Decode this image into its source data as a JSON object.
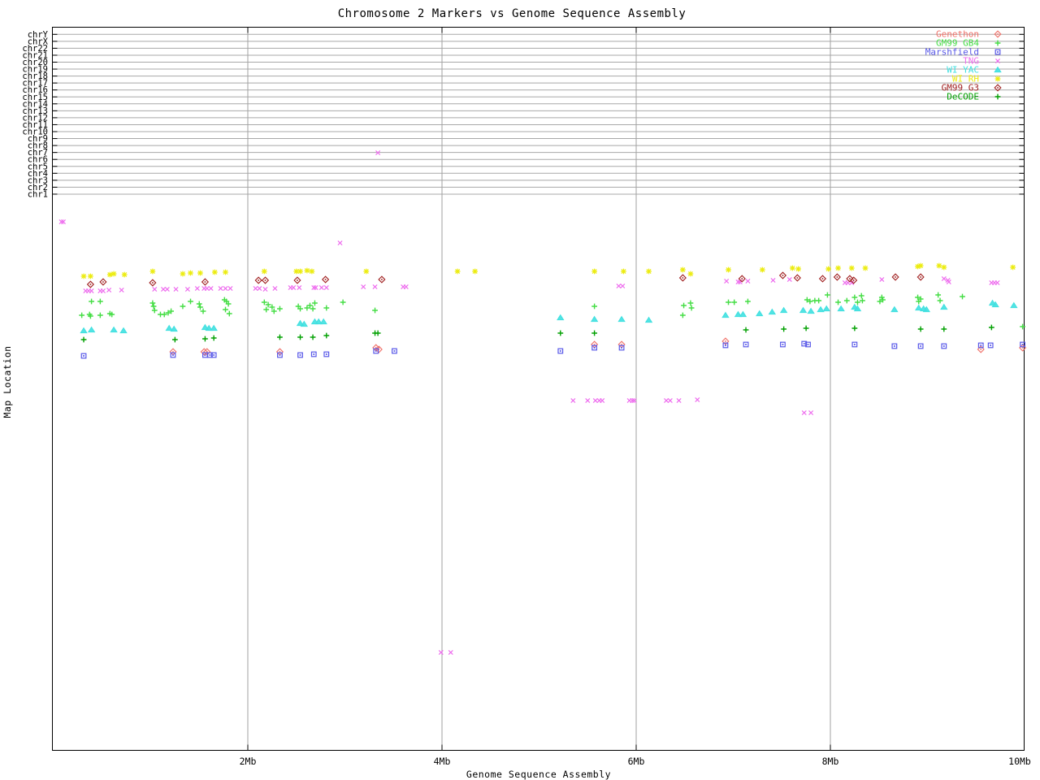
{
  "chart_data": {
    "type": "scatter",
    "title": "Chromosome 2 Markers vs Genome Sequence Assembly",
    "xlabel": "Genome Sequence Assembly",
    "ylabel": "Map Location",
    "xlim_mb": [
      0,
      10
    ],
    "x_ticks": [
      {
        "mb": 2,
        "label": "2Mb"
      },
      {
        "mb": 4,
        "label": "4Mb"
      },
      {
        "mb": 6,
        "label": "6Mb"
      },
      {
        "mb": 8,
        "label": "8Mb"
      },
      {
        "mb": 10,
        "label": "10Mb"
      }
    ],
    "y_categories": [
      "chrY",
      "chrX",
      "chr22",
      "chr21",
      "chr20",
      "chr19",
      "chr18",
      "chr17",
      "chr16",
      "chr15",
      "chr14",
      "chr13",
      "chr12",
      "chr11",
      "chr10",
      "chr9",
      "chr8",
      "chr7",
      "chr6",
      "chr5",
      "chr4",
      "chr3",
      "chr2",
      "chr1"
    ],
    "grid": {
      "horizontal": true,
      "vertical": true
    },
    "legend_position": "top-right",
    "point_format": "[x_Mb, y_screen_px]",
    "series": [
      {
        "name": "Genethon",
        "color": "#f07068",
        "marker": "diamond",
        "points": [
          [
            1.23,
            433
          ],
          [
            1.55,
            433
          ],
          [
            1.58,
            433
          ],
          [
            2.33,
            433
          ],
          [
            3.32,
            428
          ],
          [
            3.35,
            430
          ],
          [
            5.57,
            424
          ],
          [
            5.85,
            424
          ],
          [
            6.92,
            420
          ],
          [
            9.55,
            430
          ],
          [
            9.98,
            428
          ]
        ]
      },
      {
        "name": "GM99 GB4",
        "color": "#44dd44",
        "marker": "plus",
        "points": [
          [
            0.39,
            371
          ],
          [
            0.48,
            371
          ],
          [
            0.29,
            388
          ],
          [
            0.37,
            387
          ],
          [
            0.38,
            389
          ],
          [
            0.48,
            388
          ],
          [
            0.58,
            386
          ],
          [
            0.6,
            387
          ],
          [
            1.02,
            373
          ],
          [
            1.03,
            377
          ],
          [
            1.04,
            382
          ],
          [
            1.1,
            387
          ],
          [
            1.14,
            387
          ],
          [
            1.18,
            385
          ],
          [
            1.21,
            383
          ],
          [
            1.33,
            377
          ],
          [
            1.41,
            371
          ],
          [
            1.5,
            374
          ],
          [
            1.51,
            378
          ],
          [
            1.54,
            383
          ],
          [
            1.76,
            369
          ],
          [
            1.78,
            371
          ],
          [
            1.8,
            374
          ],
          [
            1.77,
            381
          ],
          [
            1.81,
            386
          ],
          [
            2.17,
            372
          ],
          [
            2.21,
            375
          ],
          [
            2.25,
            378
          ],
          [
            2.19,
            381
          ],
          [
            2.27,
            383
          ],
          [
            2.33,
            380
          ],
          [
            2.52,
            377
          ],
          [
            2.54,
            380
          ],
          [
            2.61,
            379
          ],
          [
            2.64,
            376
          ],
          [
            2.67,
            380
          ],
          [
            2.69,
            373
          ],
          [
            2.81,
            379
          ],
          [
            2.98,
            372
          ],
          [
            3.31,
            382
          ],
          [
            5.57,
            377
          ],
          [
            6.49,
            376
          ],
          [
            6.56,
            373
          ],
          [
            6.57,
            379
          ],
          [
            6.48,
            388
          ],
          [
            6.95,
            372
          ],
          [
            7.01,
            372
          ],
          [
            7.15,
            371
          ],
          [
            7.76,
            369
          ],
          [
            7.79,
            371
          ],
          [
            7.84,
            370
          ],
          [
            7.88,
            370
          ],
          [
            7.97,
            363
          ],
          [
            8.08,
            372
          ],
          [
            8.17,
            370
          ],
          [
            8.25,
            366
          ],
          [
            8.28,
            372
          ],
          [
            8.32,
            364
          ],
          [
            8.33,
            370
          ],
          [
            8.53,
            366
          ],
          [
            8.54,
            369
          ],
          [
            8.51,
            371
          ],
          [
            8.9,
            366
          ],
          [
            8.93,
            368
          ],
          [
            8.91,
            371
          ],
          [
            9.11,
            363
          ],
          [
            9.13,
            370
          ],
          [
            9.36,
            365
          ],
          [
            9.98,
            402
          ]
        ]
      },
      {
        "name": "Marshfield",
        "color": "#5858e8",
        "marker": "square",
        "points": [
          [
            0.31,
            438
          ],
          [
            1.23,
            437
          ],
          [
            1.56,
            437
          ],
          [
            1.61,
            437
          ],
          [
            1.65,
            437
          ],
          [
            2.33,
            437
          ],
          [
            2.54,
            437
          ],
          [
            2.68,
            436
          ],
          [
            2.81,
            436
          ],
          [
            3.32,
            432
          ],
          [
            3.51,
            432
          ],
          [
            5.22,
            432
          ],
          [
            5.57,
            428
          ],
          [
            5.85,
            428
          ],
          [
            6.92,
            425
          ],
          [
            7.13,
            424
          ],
          [
            7.51,
            424
          ],
          [
            7.73,
            423
          ],
          [
            7.77,
            424
          ],
          [
            8.25,
            424
          ],
          [
            8.66,
            426
          ],
          [
            8.93,
            426
          ],
          [
            9.17,
            426
          ],
          [
            9.55,
            425
          ],
          [
            9.65,
            425
          ],
          [
            9.98,
            424
          ]
        ]
      },
      {
        "name": "TNG",
        "color": "#ee6eee",
        "marker": "cross",
        "points": [
          [
            0.33,
            358
          ],
          [
            0.36,
            358
          ],
          [
            0.39,
            358
          ],
          [
            0.48,
            358
          ],
          [
            0.51,
            358
          ],
          [
            0.57,
            357
          ],
          [
            0.7,
            357
          ],
          [
            1.04,
            356
          ],
          [
            1.13,
            356
          ],
          [
            1.17,
            356
          ],
          [
            1.26,
            356
          ],
          [
            1.38,
            356
          ],
          [
            1.48,
            355
          ],
          [
            1.55,
            355
          ],
          [
            1.58,
            355
          ],
          [
            1.62,
            355
          ],
          [
            1.72,
            355
          ],
          [
            1.77,
            355
          ],
          [
            1.82,
            355
          ],
          [
            2.08,
            355
          ],
          [
            2.12,
            355
          ],
          [
            2.18,
            356
          ],
          [
            2.28,
            355
          ],
          [
            2.44,
            354
          ],
          [
            2.47,
            354
          ],
          [
            2.53,
            354
          ],
          [
            2.68,
            354
          ],
          [
            2.7,
            354
          ],
          [
            2.76,
            354
          ],
          [
            2.81,
            354
          ],
          [
            3.19,
            353
          ],
          [
            3.31,
            353
          ],
          [
            3.6,
            353
          ],
          [
            3.63,
            353
          ],
          [
            5.82,
            352
          ],
          [
            5.86,
            352
          ],
          [
            6.93,
            346
          ],
          [
            7.05,
            347
          ],
          [
            7.07,
            347
          ],
          [
            7.15,
            346
          ],
          [
            7.41,
            345
          ],
          [
            7.58,
            344
          ],
          [
            8.15,
            348
          ],
          [
            8.18,
            348
          ],
          [
            8.22,
            348
          ],
          [
            8.53,
            344
          ],
          [
            9.17,
            343
          ],
          [
            9.21,
            345
          ],
          [
            9.22,
            347
          ],
          [
            9.66,
            348
          ],
          [
            9.69,
            348
          ],
          [
            9.72,
            348
          ],
          [
            5.35,
            493
          ],
          [
            5.5,
            493
          ],
          [
            5.58,
            493
          ],
          [
            5.62,
            493
          ],
          [
            5.65,
            493
          ],
          [
            5.93,
            493
          ],
          [
            5.96,
            493
          ],
          [
            5.98,
            493
          ],
          [
            6.31,
            493
          ],
          [
            6.35,
            493
          ],
          [
            6.44,
            493
          ],
          [
            6.63,
            492
          ],
          [
            7.73,
            508
          ],
          [
            7.8,
            508
          ],
          [
            0.08,
            273
          ],
          [
            0.1,
            273
          ],
          [
            2.95,
            299
          ],
          [
            3.34,
            188
          ],
          [
            3.99,
            803
          ],
          [
            4.09,
            803
          ]
        ]
      },
      {
        "name": "WI YAC",
        "color": "#40e0e0",
        "marker": "triangle",
        "points": [
          [
            0.31,
            407
          ],
          [
            0.39,
            406
          ],
          [
            0.62,
            406
          ],
          [
            0.72,
            407
          ],
          [
            1.19,
            404
          ],
          [
            1.24,
            405
          ],
          [
            1.56,
            403
          ],
          [
            1.6,
            404
          ],
          [
            1.65,
            404
          ],
          [
            2.54,
            398
          ],
          [
            2.58,
            399
          ],
          [
            2.69,
            396
          ],
          [
            2.73,
            396
          ],
          [
            2.78,
            396
          ],
          [
            5.22,
            391
          ],
          [
            5.57,
            393
          ],
          [
            5.85,
            393
          ],
          [
            6.13,
            394
          ],
          [
            6.92,
            388
          ],
          [
            7.05,
            387
          ],
          [
            7.1,
            387
          ],
          [
            7.27,
            386
          ],
          [
            7.4,
            384
          ],
          [
            7.52,
            382
          ],
          [
            7.72,
            382
          ],
          [
            7.8,
            383
          ],
          [
            7.9,
            381
          ],
          [
            7.96,
            380
          ],
          [
            8.11,
            380
          ],
          [
            8.25,
            378
          ],
          [
            8.28,
            380
          ],
          [
            8.66,
            381
          ],
          [
            8.91,
            379
          ],
          [
            8.96,
            380
          ],
          [
            8.99,
            381
          ],
          [
            9.17,
            378
          ],
          [
            9.67,
            373
          ],
          [
            9.7,
            375
          ],
          [
            9.89,
            376
          ]
        ]
      },
      {
        "name": "WI RH",
        "color": "#ecec10",
        "marker": "star",
        "points": [
          [
            0.31,
            340
          ],
          [
            0.38,
            340
          ],
          [
            0.58,
            338
          ],
          [
            0.62,
            337
          ],
          [
            0.73,
            338
          ],
          [
            1.02,
            334
          ],
          [
            1.33,
            337
          ],
          [
            1.41,
            336
          ],
          [
            1.51,
            336
          ],
          [
            1.66,
            335
          ],
          [
            1.77,
            335
          ],
          [
            2.17,
            334
          ],
          [
            2.5,
            334
          ],
          [
            2.54,
            334
          ],
          [
            2.61,
            333
          ],
          [
            2.66,
            334
          ],
          [
            3.22,
            334
          ],
          [
            4.16,
            334
          ],
          [
            4.34,
            334
          ],
          [
            5.57,
            334
          ],
          [
            5.87,
            334
          ],
          [
            6.13,
            334
          ],
          [
            6.48,
            332
          ],
          [
            6.56,
            337
          ],
          [
            6.95,
            332
          ],
          [
            7.3,
            332
          ],
          [
            7.61,
            330
          ],
          [
            7.67,
            331
          ],
          [
            7.98,
            331
          ],
          [
            8.08,
            330
          ],
          [
            8.22,
            330
          ],
          [
            8.36,
            330
          ],
          [
            8.9,
            328
          ],
          [
            8.93,
            327
          ],
          [
            9.12,
            327
          ],
          [
            9.17,
            329
          ],
          [
            9.88,
            329
          ]
        ]
      },
      {
        "name": "GM99 G3",
        "color": "#a02020",
        "marker": "diamond",
        "points": [
          [
            0.38,
            350
          ],
          [
            0.51,
            347
          ],
          [
            1.02,
            348
          ],
          [
            1.56,
            347
          ],
          [
            2.11,
            345
          ],
          [
            2.18,
            345
          ],
          [
            2.51,
            345
          ],
          [
            2.8,
            344
          ],
          [
            3.38,
            344
          ],
          [
            6.48,
            342
          ],
          [
            7.09,
            343
          ],
          [
            7.51,
            339
          ],
          [
            7.66,
            342
          ],
          [
            7.92,
            343
          ],
          [
            8.07,
            341
          ],
          [
            8.2,
            343
          ],
          [
            8.24,
            345
          ],
          [
            8.67,
            341
          ],
          [
            8.93,
            341
          ]
        ]
      },
      {
        "name": "DeCODE",
        "color": "#00a000",
        "marker": "plus",
        "points": [
          [
            0.31,
            418
          ],
          [
            1.25,
            418
          ],
          [
            1.56,
            417
          ],
          [
            1.65,
            416
          ],
          [
            2.33,
            415
          ],
          [
            2.54,
            415
          ],
          [
            2.67,
            415
          ],
          [
            2.81,
            413
          ],
          [
            3.31,
            410
          ],
          [
            3.34,
            410
          ],
          [
            5.22,
            410
          ],
          [
            5.57,
            410
          ],
          [
            7.13,
            406
          ],
          [
            7.52,
            405
          ],
          [
            7.75,
            404
          ],
          [
            8.25,
            404
          ],
          [
            8.93,
            405
          ],
          [
            9.17,
            405
          ],
          [
            9.66,
            403
          ]
        ]
      }
    ]
  }
}
